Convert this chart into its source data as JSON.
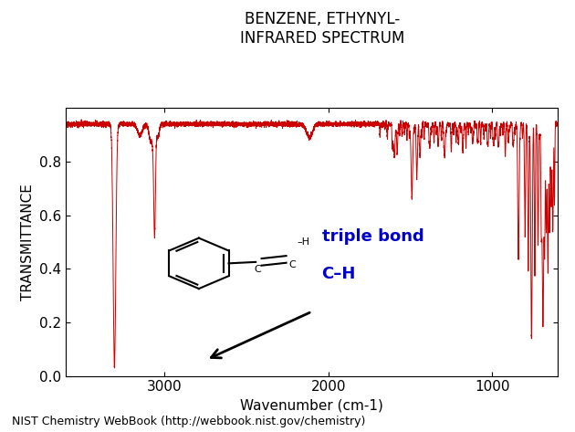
{
  "title_line1": "BENZENE, ETHYNYL-",
  "title_line2": "INFRARED SPECTRUM",
  "xlabel": "Wavenumber (cm-1)",
  "ylabel": "TRANSMITTANCE",
  "xlim": [
    3600,
    600
  ],
  "ylim": [
    0.0,
    1.0
  ],
  "xticks": [
    3000,
    2000,
    1000
  ],
  "yticks": [
    0.0,
    0.2,
    0.4,
    0.6,
    0.8
  ],
  "line_color": "#cc0000",
  "background_color": "#ffffff",
  "footer_text": "NIST Chemistry WebBook (http://webbook.nist.gov/chemistry)",
  "annotation_blue_line1": "triple bond",
  "annotation_blue_line2": "C–H",
  "annotation_color": "#0000cc"
}
